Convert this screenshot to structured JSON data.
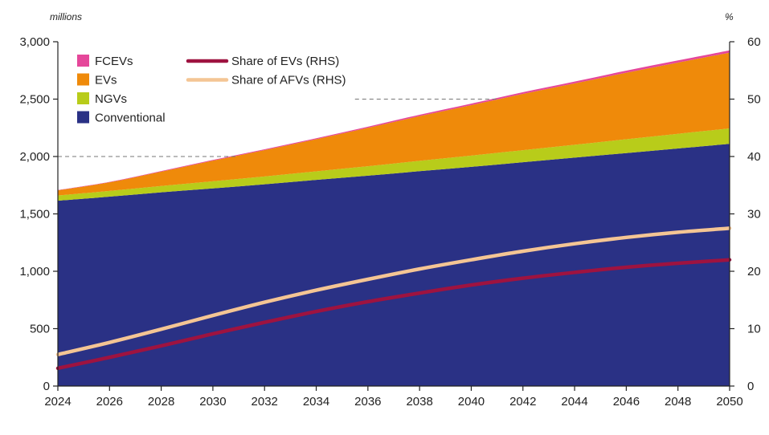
{
  "chart_data": {
    "type": "area",
    "left_unit": "millions",
    "right_unit": "%",
    "x": [
      2024,
      2026,
      2028,
      2030,
      2032,
      2034,
      2036,
      2038,
      2040,
      2042,
      2044,
      2046,
      2048,
      2050
    ],
    "x_tick_labels": [
      "2024",
      "2026",
      "2028",
      "2030",
      "2032",
      "2034",
      "2036",
      "2038",
      "2040",
      "2042",
      "2044",
      "2046",
      "2048",
      "2050"
    ],
    "ylim_left": [
      0,
      3000
    ],
    "ylim_right": [
      0,
      60
    ],
    "y_left_ticks": [
      0,
      500,
      1000,
      1500,
      2000,
      2500,
      3000
    ],
    "y_left_tick_labels": [
      "0",
      "500",
      "1,000",
      "1,500",
      "2,000",
      "2,500",
      "3,000"
    ],
    "y_right_ticks": [
      0,
      10,
      20,
      30,
      40,
      50,
      60
    ],
    "y_right_tick_labels": [
      "0",
      "10",
      "20",
      "30",
      "40",
      "50",
      "60"
    ],
    "reference_lines": [
      {
        "axis": "left",
        "value": 2000,
        "x_from": 2024,
        "x_to": 2031
      },
      {
        "axis": "left",
        "value": 2500,
        "x_from": 2035.5,
        "x_to": 2041
      }
    ],
    "area_series": [
      {
        "name": "Conventional",
        "color": "#2a3185",
        "values": [
          1615,
          1650,
          1688,
          1722,
          1758,
          1796,
          1833,
          1872,
          1910,
          1950,
          1990,
          2030,
          2070,
          2110
        ]
      },
      {
        "name": "NGVs",
        "color": "#b8cc1a",
        "values": [
          45,
          50,
          55,
          62,
          68,
          75,
          82,
          90,
          98,
          105,
          112,
          120,
          128,
          135
        ]
      },
      {
        "name": "EVs",
        "color": "#ef8a0a",
        "values": [
          45,
          75,
          125,
          180,
          230,
          280,
          335,
          390,
          440,
          490,
          535,
          580,
          620,
          660
        ]
      },
      {
        "name": "FCEVs",
        "color": "#e5479a",
        "values": [
          3,
          4,
          5,
          6,
          7,
          8,
          10,
          12,
          13,
          15,
          16,
          18,
          19,
          20
        ]
      }
    ],
    "line_series": [
      {
        "name": "Share of EVs (RHS)",
        "color": "#9e1340",
        "axis": "right",
        "values": [
          3.1,
          5.0,
          7.0,
          9.1,
          11.1,
          13.0,
          14.7,
          16.2,
          17.6,
          18.8,
          19.8,
          20.7,
          21.4,
          22.0
        ]
      },
      {
        "name": "Share of AFVs (RHS)",
        "color": "#f4c594",
        "axis": "right",
        "values": [
          5.5,
          7.6,
          9.9,
          12.3,
          14.6,
          16.7,
          18.6,
          20.4,
          22.0,
          23.5,
          24.8,
          25.9,
          26.8,
          27.5
        ]
      }
    ],
    "legend_left": [
      "FCEVs",
      "EVs",
      "NGVs",
      "Conventional"
    ],
    "legend_right": [
      "Share of EVs (RHS)",
      "Share of AFVs (RHS)"
    ],
    "grid": false,
    "legend_position": "top-left"
  }
}
